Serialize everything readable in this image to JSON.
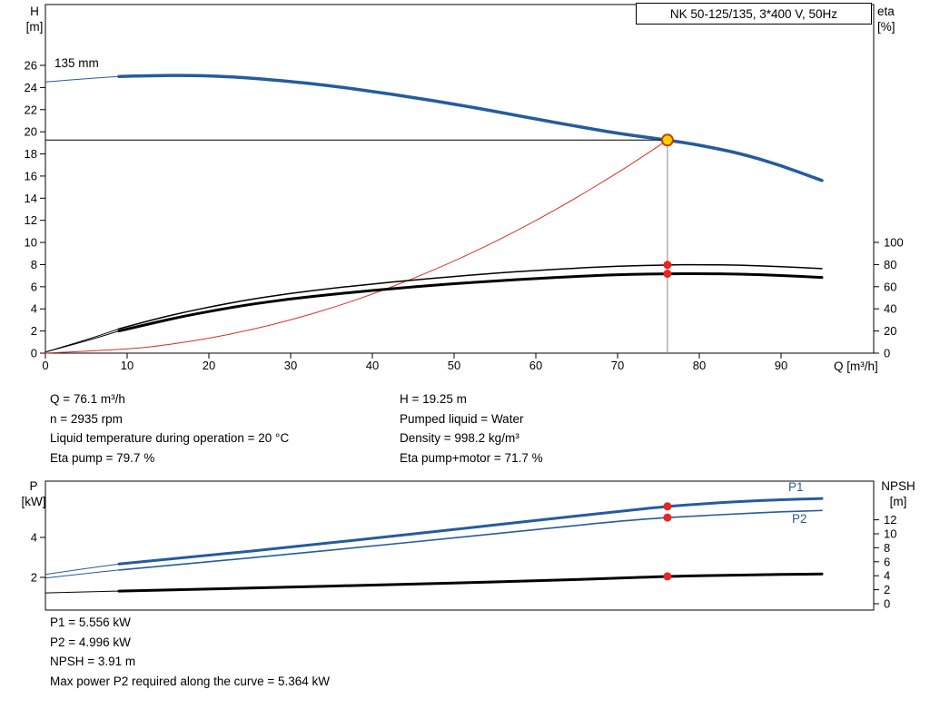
{
  "axes_labels": {
    "h": "H",
    "h_unit": "[m]",
    "eta": "eta",
    "eta_unit": "[%]",
    "q": "Q [m³/h]",
    "p": "P",
    "p_unit": "[kW]",
    "npsh": "NPSH",
    "npsh_unit": "[m]"
  },
  "duty_info": {
    "left": [
      "Q = 76.1 m³/h",
      "n = 2935 rpm",
      "Liquid temperature during operation = 20 °C",
      "Eta pump = 79.7 %"
    ],
    "right": [
      "H = 19.25 m",
      "Pumped liquid = Water",
      "Density = 998.2 kg/m³",
      "Eta pump+motor = 71.7 %"
    ]
  },
  "power_info": [
    "P1 = 5.556 kW",
    "P2 = 4.996 kW",
    "NPSH = 3.91 m",
    "Max power P2 required along the curve = 5.364 kW"
  ],
  "colors": {
    "curve_blue": "#245c9e",
    "system_red": "#d93025",
    "curve_black": "#000000",
    "marker_red": "#e8251f",
    "duty_fill": "#ffd400",
    "duty_ring": "#d03a00",
    "guide_gray": "#8a8a8a"
  },
  "chart_data": [
    {
      "type": "line",
      "title": "NK 50-125/135, 3*400 V, 50Hz",
      "impeller_label": "135 mm",
      "x_axis": {
        "label": "Q [m³/h]",
        "min": 0,
        "max": 101,
        "ticks": [
          0,
          10,
          20,
          30,
          40,
          50,
          60,
          70,
          80,
          90
        ]
      },
      "y_left": {
        "label": "H [m]",
        "min": 0,
        "max": 31.5,
        "ticks": [
          0,
          2,
          4,
          6,
          8,
          10,
          12,
          14,
          16,
          18,
          20,
          22,
          24,
          26
        ]
      },
      "y_right": {
        "label": "eta [%]",
        "min": 0,
        "max": 100,
        "ticks": [
          0,
          20,
          40,
          60,
          80,
          100
        ]
      },
      "duty_point": {
        "q": 76.1,
        "h": 19.25
      },
      "markers": [
        {
          "q": 76.1,
          "v": 79.7,
          "axis": "right",
          "name": "eta-pump-duty-marker"
        },
        {
          "q": 76.1,
          "v": 71.7,
          "axis": "right",
          "name": "eta-pump-motor-duty-marker"
        }
      ],
      "series": [
        {
          "name": "system-curve",
          "axis": "left",
          "color": "#d93025",
          "width": 1,
          "points": [
            [
              0,
              0
            ],
            [
              10,
              0.33
            ],
            [
              15,
              0.75
            ],
            [
              20,
              1.33
            ],
            [
              25,
              2.08
            ],
            [
              30,
              2.99
            ],
            [
              35,
              4.07
            ],
            [
              40,
              5.32
            ],
            [
              45,
              6.73
            ],
            [
              50,
              8.31
            ],
            [
              55,
              10.05
            ],
            [
              60,
              11.97
            ],
            [
              65,
              14.05
            ],
            [
              70,
              16.29
            ],
            [
              73,
              17.72
            ],
            [
              76.1,
              19.25
            ]
          ]
        },
        {
          "name": "eta-pump-curve",
          "axis": "right",
          "color": "#000000",
          "width": 1.5,
          "lead_in": [
            [
              0,
              1
            ],
            [
              5,
              12
            ],
            [
              9,
              22
            ]
          ],
          "points": [
            [
              9,
              22
            ],
            [
              13,
              30
            ],
            [
              17,
              37
            ],
            [
              21,
              43
            ],
            [
              25,
              48.5
            ],
            [
              30,
              54
            ],
            [
              35,
              58.5
            ],
            [
              40,
              62.5
            ],
            [
              45,
              66
            ],
            [
              50,
              69.3
            ],
            [
              55,
              72.2
            ],
            [
              60,
              74.7
            ],
            [
              65,
              76.8
            ],
            [
              70,
              78.5
            ],
            [
              76.1,
              79.7
            ],
            [
              80,
              79.9
            ],
            [
              85,
              79.4
            ],
            [
              90,
              78.2
            ],
            [
              95,
              76.3
            ]
          ]
        },
        {
          "name": "eta-pump-motor-curve",
          "axis": "right",
          "color": "#000000",
          "width": 3,
          "lead_in": [
            [
              0,
              1
            ],
            [
              5,
              11
            ],
            [
              9,
              20
            ]
          ],
          "points": [
            [
              9,
              20
            ],
            [
              13,
              27
            ],
            [
              17,
              33.5
            ],
            [
              21,
              39
            ],
            [
              25,
              44
            ],
            [
              30,
              49
            ],
            [
              35,
              53
            ],
            [
              40,
              56.6
            ],
            [
              45,
              59.8
            ],
            [
              50,
              62.7
            ],
            [
              55,
              65.2
            ],
            [
              60,
              67.4
            ],
            [
              65,
              69.3
            ],
            [
              70,
              70.9
            ],
            [
              76.1,
              71.7
            ],
            [
              80,
              71.8
            ],
            [
              85,
              71.4
            ],
            [
              90,
              70.2
            ],
            [
              95,
              68.4
            ]
          ]
        },
        {
          "name": "pump-curve-135mm",
          "axis": "left",
          "color": "#245c9e",
          "width": 3.5,
          "lead_in": [
            [
              0,
              24.5
            ],
            [
              4,
              24.75
            ],
            [
              9,
              25.0
            ]
          ],
          "points": [
            [
              9,
              25.0
            ],
            [
              13,
              25.08
            ],
            [
              18,
              25.1
            ],
            [
              22,
              25.0
            ],
            [
              26,
              24.8
            ],
            [
              30,
              24.55
            ],
            [
              35,
              24.15
            ],
            [
              40,
              23.65
            ],
            [
              45,
              23.1
            ],
            [
              50,
              22.5
            ],
            [
              55,
              21.85
            ],
            [
              60,
              21.15
            ],
            [
              65,
              20.5
            ],
            [
              70,
              19.85
            ],
            [
              76.1,
              19.25
            ],
            [
              80,
              18.8
            ],
            [
              85,
              18.05
            ],
            [
              90,
              16.95
            ],
            [
              95,
              15.6
            ]
          ]
        }
      ]
    },
    {
      "type": "line",
      "x_axis": {
        "label": "Q [m³/h]",
        "min": 0,
        "max": 101
      },
      "y_left": {
        "label": "P [kW]",
        "min": 0,
        "max": 6.8,
        "ticks": [
          2,
          4
        ]
      },
      "y_right": {
        "label": "NPSH [m]",
        "min": 0,
        "max": 12,
        "ticks": [
          0,
          2,
          4,
          6,
          8,
          10,
          12
        ]
      },
      "markers": [
        {
          "q": 76.1,
          "v": 5.556,
          "axis": "left",
          "name": "p1-duty-marker"
        },
        {
          "q": 76.1,
          "v": 4.996,
          "axis": "left",
          "name": "p2-duty-marker"
        },
        {
          "q": 76.1,
          "v": 3.91,
          "axis": "right",
          "name": "npsh-duty-marker"
        }
      ],
      "series": [
        {
          "name": "p1-curve",
          "label": "P1",
          "axis": "left",
          "color": "#245c9e",
          "width": 3,
          "lead_in": [
            [
              0,
              2.15
            ],
            [
              5,
              2.45
            ],
            [
              9,
              2.67
            ]
          ],
          "points": [
            [
              9,
              2.67
            ],
            [
              20,
              3.1
            ],
            [
              30,
              3.52
            ],
            [
              40,
              3.95
            ],
            [
              50,
              4.4
            ],
            [
              60,
              4.85
            ],
            [
              70,
              5.3
            ],
            [
              76.1,
              5.556
            ],
            [
              80,
              5.67
            ],
            [
              85,
              5.8
            ],
            [
              90,
              5.89
            ],
            [
              95,
              5.95
            ]
          ]
        },
        {
          "name": "p2-curve",
          "label": "P2",
          "axis": "left",
          "color": "#245c9e",
          "width": 1.6,
          "lead_in": [
            [
              0,
              1.97
            ],
            [
              5,
              2.2
            ],
            [
              9,
              2.37
            ]
          ],
          "points": [
            [
              9,
              2.37
            ],
            [
              20,
              2.78
            ],
            [
              30,
              3.17
            ],
            [
              40,
              3.57
            ],
            [
              50,
              3.98
            ],
            [
              60,
              4.39
            ],
            [
              70,
              4.81
            ],
            [
              76.1,
              4.996
            ],
            [
              80,
              5.08
            ],
            [
              85,
              5.19
            ],
            [
              90,
              5.28
            ],
            [
              95,
              5.35
            ]
          ]
        },
        {
          "name": "npsh-curve",
          "axis": "right",
          "color": "#000000",
          "width": 3,
          "lead_in": [
            [
              0,
              1.55
            ],
            [
              5,
              1.7
            ],
            [
              9,
              1.8
            ]
          ],
          "points": [
            [
              9,
              1.8
            ],
            [
              20,
              2.1
            ],
            [
              30,
              2.38
            ],
            [
              40,
              2.66
            ],
            [
              50,
              2.96
            ],
            [
              60,
              3.28
            ],
            [
              70,
              3.64
            ],
            [
              76.1,
              3.91
            ],
            [
              85,
              4.12
            ],
            [
              95,
              4.25
            ]
          ]
        }
      ]
    }
  ]
}
